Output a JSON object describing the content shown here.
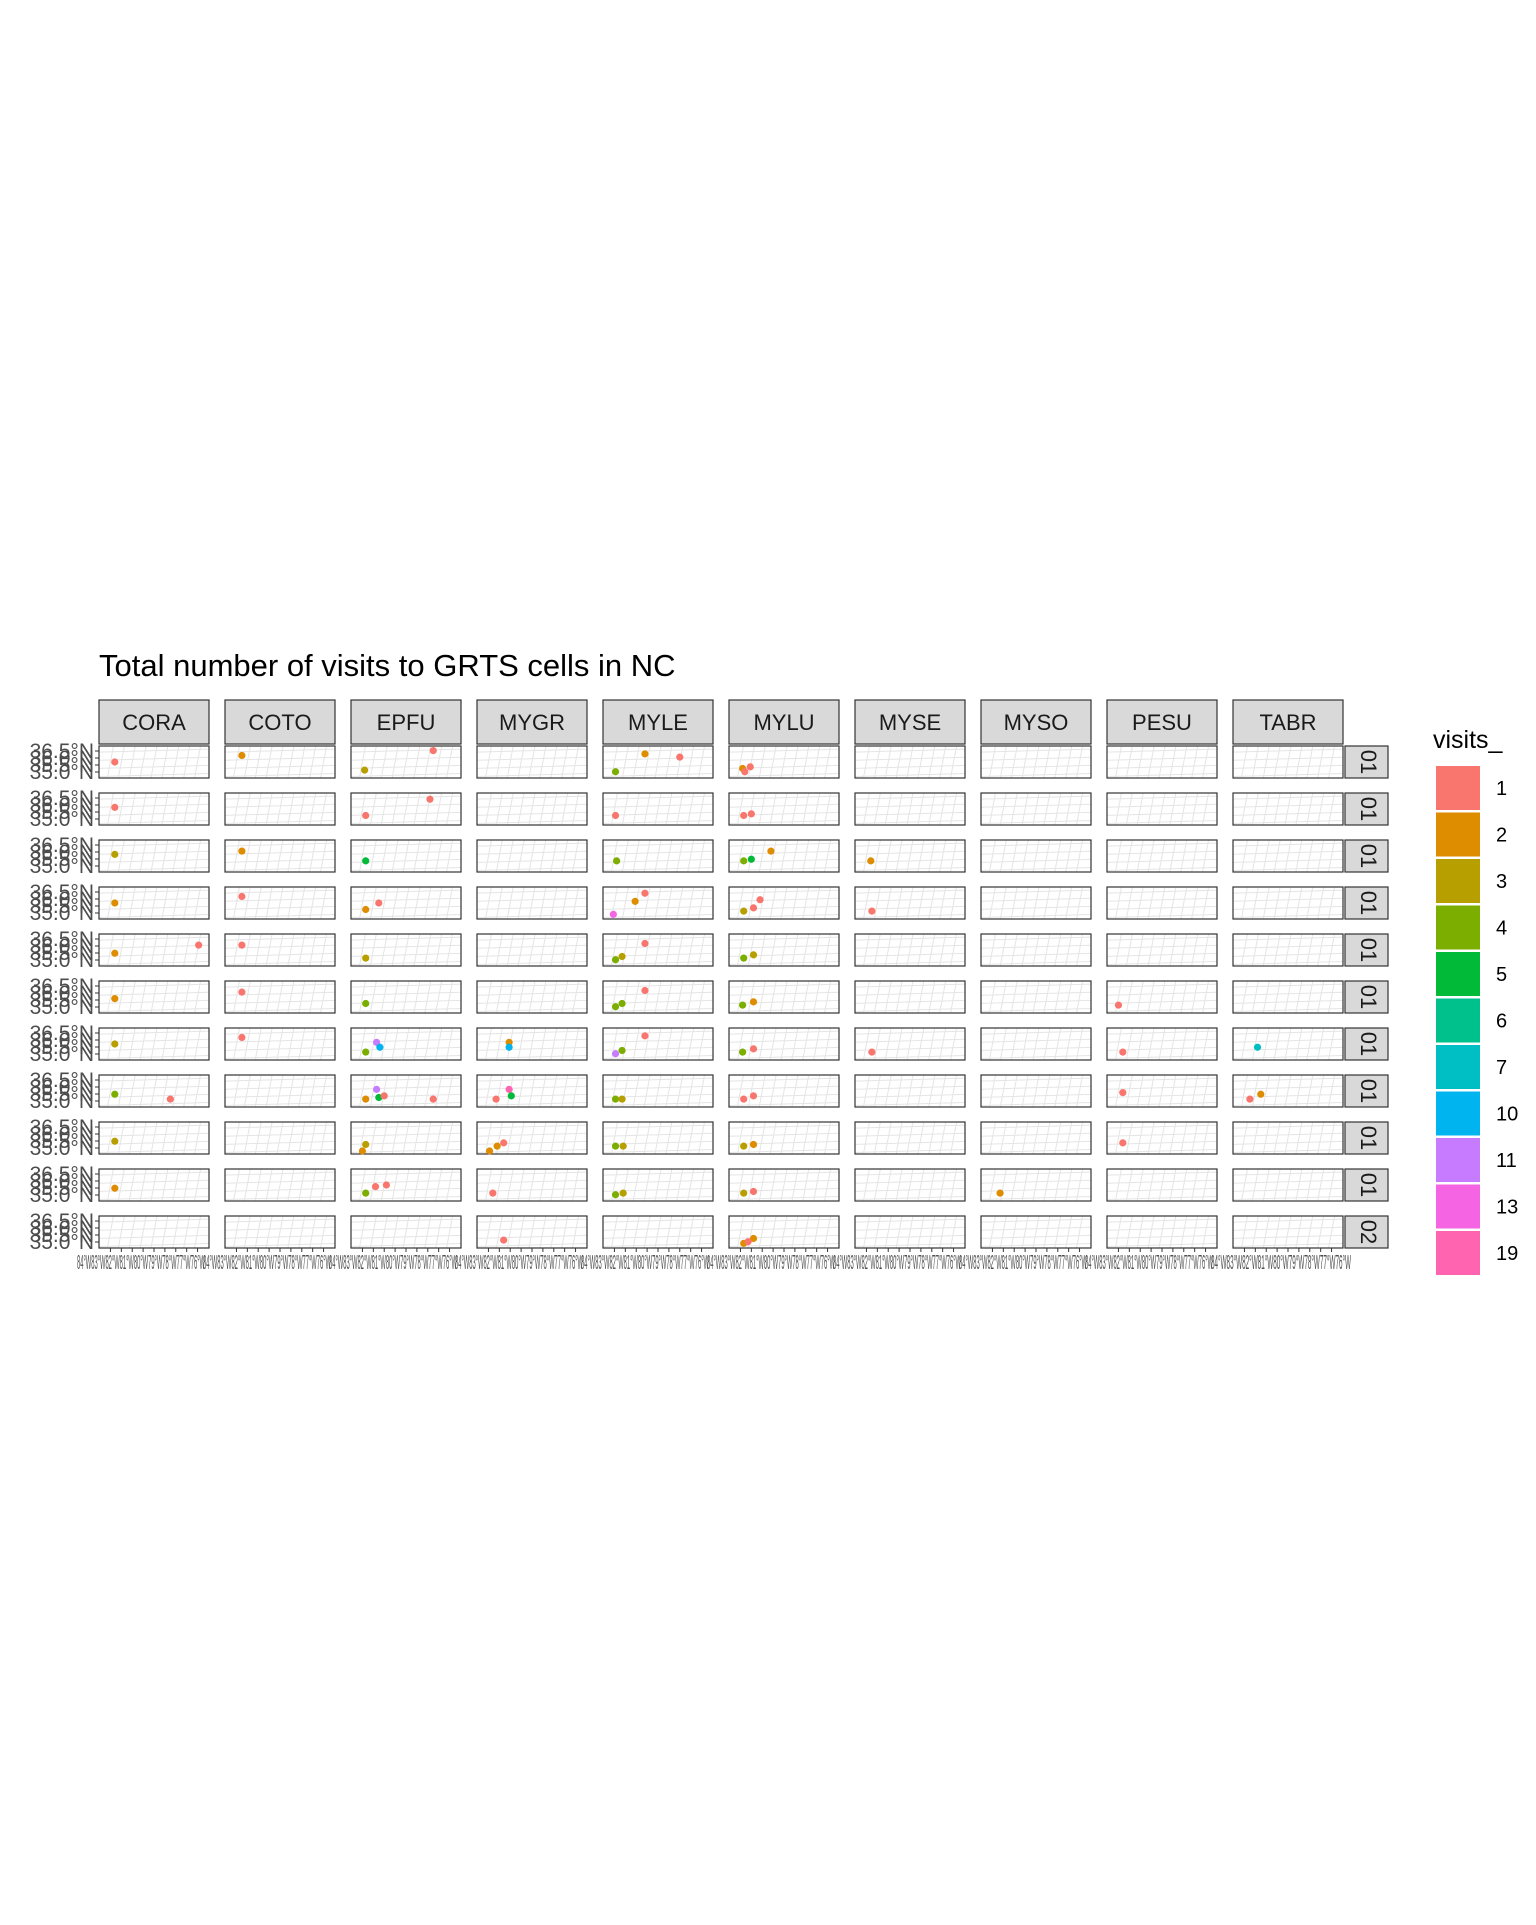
{
  "chart_data": {
    "type": "scatter",
    "title": "Total number of visits to GRTS cells in NC",
    "facet_columns": [
      "CORA",
      "COTO",
      "EPFU",
      "MYGR",
      "MYLE",
      "MYLU",
      "MYSE",
      "MYSO",
      "PESU",
      "TABR"
    ],
    "facet_rows": [
      "01",
      "01",
      "01",
      "01",
      "01",
      "01",
      "01",
      "01",
      "01",
      "01",
      "02"
    ],
    "y_tick_labels": [
      "36.5°N",
      "36.0°N",
      "35.5°N",
      "35.0°N"
    ],
    "x_tick_text": "84°W83°W82°W81°W80°W79°W78°W77°W76°W",
    "x_tick_text_last": "84°W83°W82°W81°W80°W79°W78°W77°W76°W",
    "ylim": [
      35.0,
      36.6
    ],
    "xlim": [
      -84.5,
      -75.5
    ],
    "grid": true,
    "legend": {
      "title": "visits_",
      "position": "right",
      "entries": [
        {
          "label": "1",
          "value": 1,
          "color": "#F8766D"
        },
        {
          "label": "2",
          "value": 2,
          "color": "#DE8C00"
        },
        {
          "label": "3",
          "value": 3,
          "color": "#B79F00"
        },
        {
          "label": "4",
          "value": 4,
          "color": "#7CAE00"
        },
        {
          "label": "5",
          "value": 5,
          "color": "#00BA38"
        },
        {
          "label": "6",
          "value": 6,
          "color": "#00C08B"
        },
        {
          "label": "7",
          "value": 7,
          "color": "#00BFC4"
        },
        {
          "label": "10",
          "value": 10,
          "color": "#00B4F0"
        },
        {
          "label": "11",
          "value": 11,
          "color": "#C77CFF"
        },
        {
          "label": "13",
          "value": 13,
          "color": "#F564E3"
        },
        {
          "label": "19",
          "value": 19,
          "color": "#FF64B0"
        }
      ]
    },
    "points": [
      {
        "row": 0,
        "col": 0,
        "lon": -83.6,
        "lat": 35.8,
        "visits": 1
      },
      {
        "row": 0,
        "col": 1,
        "lon": -83.5,
        "lat": 36.2,
        "visits": 2
      },
      {
        "row": 0,
        "col": 2,
        "lon": -83.8,
        "lat": 35.3,
        "visits": 3
      },
      {
        "row": 0,
        "col": 2,
        "lon": -77.5,
        "lat": 36.5,
        "visits": 1
      },
      {
        "row": 0,
        "col": 4,
        "lon": -83.9,
        "lat": 35.2,
        "visits": 4
      },
      {
        "row": 0,
        "col": 4,
        "lon": -81.2,
        "lat": 36.3,
        "visits": 2
      },
      {
        "row": 0,
        "col": 4,
        "lon": -78.0,
        "lat": 36.1,
        "visits": 1
      },
      {
        "row": 0,
        "col": 5,
        "lon": -83.8,
        "lat": 35.4,
        "visits": 2
      },
      {
        "row": 0,
        "col": 5,
        "lon": -83.1,
        "lat": 35.5,
        "visits": 1
      },
      {
        "row": 0,
        "col": 5,
        "lon": -83.6,
        "lat": 35.2,
        "visits": 1
      },
      {
        "row": 1,
        "col": 0,
        "lon": -83.6,
        "lat": 35.9,
        "visits": 1
      },
      {
        "row": 1,
        "col": 2,
        "lon": -83.7,
        "lat": 35.4,
        "visits": 1
      },
      {
        "row": 1,
        "col": 2,
        "lon": -77.8,
        "lat": 36.4,
        "visits": 1
      },
      {
        "row": 1,
        "col": 4,
        "lon": -83.9,
        "lat": 35.4,
        "visits": 1
      },
      {
        "row": 1,
        "col": 5,
        "lon": -83.7,
        "lat": 35.4,
        "visits": 1
      },
      {
        "row": 1,
        "col": 5,
        "lon": -83.0,
        "lat": 35.5,
        "visits": 1
      },
      {
        "row": 2,
        "col": 0,
        "lon": -83.6,
        "lat": 35.9,
        "visits": 3
      },
      {
        "row": 2,
        "col": 1,
        "lon": -83.5,
        "lat": 36.1,
        "visits": 2
      },
      {
        "row": 2,
        "col": 2,
        "lon": -83.7,
        "lat": 35.5,
        "visits": 5
      },
      {
        "row": 2,
        "col": 4,
        "lon": -83.8,
        "lat": 35.5,
        "visits": 4
      },
      {
        "row": 2,
        "col": 5,
        "lon": -83.7,
        "lat": 35.5,
        "visits": 4
      },
      {
        "row": 2,
        "col": 5,
        "lon": -83.0,
        "lat": 35.6,
        "visits": 5
      },
      {
        "row": 2,
        "col": 5,
        "lon": -81.2,
        "lat": 36.1,
        "visits": 2
      },
      {
        "row": 2,
        "col": 6,
        "lon": -83.6,
        "lat": 35.5,
        "visits": 2
      },
      {
        "row": 3,
        "col": 0,
        "lon": -83.6,
        "lat": 35.8,
        "visits": 2
      },
      {
        "row": 3,
        "col": 1,
        "lon": -83.5,
        "lat": 36.2,
        "visits": 1
      },
      {
        "row": 3,
        "col": 2,
        "lon": -83.7,
        "lat": 35.4,
        "visits": 2
      },
      {
        "row": 3,
        "col": 2,
        "lon": -82.5,
        "lat": 35.8,
        "visits": 1
      },
      {
        "row": 3,
        "col": 4,
        "lon": -84.1,
        "lat": 35.1,
        "visits": 13
      },
      {
        "row": 3,
        "col": 4,
        "lon": -82.1,
        "lat": 35.9,
        "visits": 2
      },
      {
        "row": 3,
        "col": 4,
        "lon": -81.2,
        "lat": 36.4,
        "visits": 1
      },
      {
        "row": 3,
        "col": 5,
        "lon": -83.7,
        "lat": 35.3,
        "visits": 3
      },
      {
        "row": 3,
        "col": 5,
        "lon": -82.8,
        "lat": 35.5,
        "visits": 1
      },
      {
        "row": 3,
        "col": 5,
        "lon": -82.2,
        "lat": 36.0,
        "visits": 1
      },
      {
        "row": 3,
        "col": 6,
        "lon": -83.5,
        "lat": 35.3,
        "visits": 1
      },
      {
        "row": 4,
        "col": 0,
        "lon": -83.6,
        "lat": 35.6,
        "visits": 2
      },
      {
        "row": 4,
        "col": 0,
        "lon": -75.9,
        "lat": 36.1,
        "visits": 1
      },
      {
        "row": 4,
        "col": 1,
        "lon": -83.5,
        "lat": 36.1,
        "visits": 1
      },
      {
        "row": 4,
        "col": 2,
        "lon": -83.7,
        "lat": 35.3,
        "visits": 3
      },
      {
        "row": 4,
        "col": 4,
        "lon": -83.9,
        "lat": 35.2,
        "visits": 4
      },
      {
        "row": 4,
        "col": 4,
        "lon": -83.3,
        "lat": 35.4,
        "visits": 3
      },
      {
        "row": 4,
        "col": 4,
        "lon": -81.2,
        "lat": 36.2,
        "visits": 1
      },
      {
        "row": 4,
        "col": 5,
        "lon": -83.7,
        "lat": 35.3,
        "visits": 4
      },
      {
        "row": 4,
        "col": 5,
        "lon": -82.8,
        "lat": 35.5,
        "visits": 3
      },
      {
        "row": 5,
        "col": 0,
        "lon": -83.6,
        "lat": 35.7,
        "visits": 2
      },
      {
        "row": 5,
        "col": 1,
        "lon": -83.5,
        "lat": 36.1,
        "visits": 1
      },
      {
        "row": 5,
        "col": 2,
        "lon": -83.7,
        "lat": 35.4,
        "visits": 4
      },
      {
        "row": 5,
        "col": 4,
        "lon": -83.9,
        "lat": 35.2,
        "visits": 4
      },
      {
        "row": 5,
        "col": 4,
        "lon": -83.3,
        "lat": 35.4,
        "visits": 4
      },
      {
        "row": 5,
        "col": 4,
        "lon": -81.2,
        "lat": 36.2,
        "visits": 1
      },
      {
        "row": 5,
        "col": 5,
        "lon": -83.8,
        "lat": 35.3,
        "visits": 4
      },
      {
        "row": 5,
        "col": 5,
        "lon": -82.8,
        "lat": 35.5,
        "visits": 2
      },
      {
        "row": 5,
        "col": 8,
        "lon": -84.0,
        "lat": 35.3,
        "visits": 1
      },
      {
        "row": 6,
        "col": 0,
        "lon": -83.6,
        "lat": 35.8,
        "visits": 3
      },
      {
        "row": 6,
        "col": 1,
        "lon": -83.5,
        "lat": 36.2,
        "visits": 1
      },
      {
        "row": 6,
        "col": 2,
        "lon": -83.7,
        "lat": 35.3,
        "visits": 4
      },
      {
        "row": 6,
        "col": 2,
        "lon": -82.7,
        "lat": 35.9,
        "visits": 11
      },
      {
        "row": 6,
        "col": 2,
        "lon": -82.4,
        "lat": 35.6,
        "visits": 10
      },
      {
        "row": 6,
        "col": 4,
        "lon": -83.9,
        "lat": 35.2,
        "visits": 11
      },
      {
        "row": 6,
        "col": 4,
        "lon": -83.3,
        "lat": 35.4,
        "visits": 4
      },
      {
        "row": 6,
        "col": 4,
        "lon": -81.2,
        "lat": 36.3,
        "visits": 1
      },
      {
        "row": 6,
        "col": 5,
        "lon": -83.8,
        "lat": 35.3,
        "visits": 4
      },
      {
        "row": 6,
        "col": 5,
        "lon": -82.8,
        "lat": 35.5,
        "visits": 1
      },
      {
        "row": 6,
        "col": 6,
        "lon": -83.5,
        "lat": 35.3,
        "visits": 1
      },
      {
        "row": 6,
        "col": 8,
        "lon": -83.6,
        "lat": 35.3,
        "visits": 1
      },
      {
        "row": 6,
        "col": 3,
        "lon": -82.1,
        "lat": 35.9,
        "visits": 2
      },
      {
        "row": 6,
        "col": 3,
        "lon": -82.1,
        "lat": 35.6,
        "visits": 10
      },
      {
        "row": 6,
        "col": 9,
        "lon": -82.8,
        "lat": 35.6,
        "visits": 7
      },
      {
        "row": 7,
        "col": 0,
        "lon": -83.6,
        "lat": 35.6,
        "visits": 4
      },
      {
        "row": 7,
        "col": 0,
        "lon": -78.5,
        "lat": 35.3,
        "visits": 1
      },
      {
        "row": 7,
        "col": 2,
        "lon": -83.7,
        "lat": 35.3,
        "visits": 2
      },
      {
        "row": 7,
        "col": 2,
        "lon": -82.7,
        "lat": 35.9,
        "visits": 11
      },
      {
        "row": 7,
        "col": 2,
        "lon": -82.5,
        "lat": 35.4,
        "visits": 5
      },
      {
        "row": 7,
        "col": 2,
        "lon": -82.0,
        "lat": 35.5,
        "visits": 1
      },
      {
        "row": 7,
        "col": 2,
        "lon": -77.5,
        "lat": 35.3,
        "visits": 1
      },
      {
        "row": 7,
        "col": 3,
        "lon": -83.3,
        "lat": 35.3,
        "visits": 1
      },
      {
        "row": 7,
        "col": 3,
        "lon": -82.1,
        "lat": 35.9,
        "visits": 19
      },
      {
        "row": 7,
        "col": 3,
        "lon": -81.9,
        "lat": 35.5,
        "visits": 5
      },
      {
        "row": 7,
        "col": 4,
        "lon": -83.9,
        "lat": 35.3,
        "visits": 4
      },
      {
        "row": 7,
        "col": 4,
        "lon": -83.3,
        "lat": 35.3,
        "visits": 3
      },
      {
        "row": 7,
        "col": 5,
        "lon": -83.7,
        "lat": 35.3,
        "visits": 1
      },
      {
        "row": 7,
        "col": 5,
        "lon": -82.8,
        "lat": 35.5,
        "visits": 1
      },
      {
        "row": 7,
        "col": 8,
        "lon": -83.6,
        "lat": 35.7,
        "visits": 1
      },
      {
        "row": 7,
        "col": 9,
        "lon": -83.5,
        "lat": 35.3,
        "visits": 1
      },
      {
        "row": 7,
        "col": 9,
        "lon": -82.5,
        "lat": 35.6,
        "visits": 2
      },
      {
        "row": 8,
        "col": 0,
        "lon": -83.6,
        "lat": 35.6,
        "visits": 3
      },
      {
        "row": 8,
        "col": 2,
        "lon": -83.7,
        "lat": 35.4,
        "visits": 3
      },
      {
        "row": 8,
        "col": 2,
        "lon": -84.0,
        "lat": 35.0,
        "visits": 2
      },
      {
        "row": 8,
        "col": 3,
        "lon": -83.9,
        "lat": 35.0,
        "visits": 2
      },
      {
        "row": 8,
        "col": 3,
        "lon": -83.2,
        "lat": 35.3,
        "visits": 2
      },
      {
        "row": 8,
        "col": 3,
        "lon": -82.6,
        "lat": 35.5,
        "visits": 1
      },
      {
        "row": 8,
        "col": 4,
        "lon": -83.9,
        "lat": 35.3,
        "visits": 4
      },
      {
        "row": 8,
        "col": 4,
        "lon": -83.2,
        "lat": 35.3,
        "visits": 3
      },
      {
        "row": 8,
        "col": 5,
        "lon": -83.7,
        "lat": 35.3,
        "visits": 3
      },
      {
        "row": 8,
        "col": 5,
        "lon": -82.8,
        "lat": 35.4,
        "visits": 2
      },
      {
        "row": 8,
        "col": 8,
        "lon": -83.6,
        "lat": 35.5,
        "visits": 1
      },
      {
        "row": 9,
        "col": 0,
        "lon": -83.6,
        "lat": 35.6,
        "visits": 2
      },
      {
        "row": 9,
        "col": 2,
        "lon": -83.7,
        "lat": 35.3,
        "visits": 4
      },
      {
        "row": 9,
        "col": 2,
        "lon": -82.8,
        "lat": 35.7,
        "visits": 1
      },
      {
        "row": 9,
        "col": 2,
        "lon": -81.8,
        "lat": 35.8,
        "visits": 1
      },
      {
        "row": 9,
        "col": 3,
        "lon": -83.6,
        "lat": 35.3,
        "visits": 1
      },
      {
        "row": 9,
        "col": 4,
        "lon": -83.9,
        "lat": 35.2,
        "visits": 4
      },
      {
        "row": 9,
        "col": 4,
        "lon": -83.2,
        "lat": 35.3,
        "visits": 3
      },
      {
        "row": 9,
        "col": 5,
        "lon": -83.7,
        "lat": 35.3,
        "visits": 3
      },
      {
        "row": 9,
        "col": 5,
        "lon": -82.8,
        "lat": 35.4,
        "visits": 1
      },
      {
        "row": 9,
        "col": 7,
        "lon": -83.3,
        "lat": 35.3,
        "visits": 2
      },
      {
        "row": 10,
        "col": 3,
        "lon": -82.6,
        "lat": 35.3,
        "visits": 1
      },
      {
        "row": 10,
        "col": 5,
        "lon": -83.7,
        "lat": 35.1,
        "visits": 2
      },
      {
        "row": 10,
        "col": 5,
        "lon": -82.8,
        "lat": 35.4,
        "visits": 2
      },
      {
        "row": 10,
        "col": 5,
        "lon": -83.3,
        "lat": 35.2,
        "visits": 1
      }
    ]
  }
}
